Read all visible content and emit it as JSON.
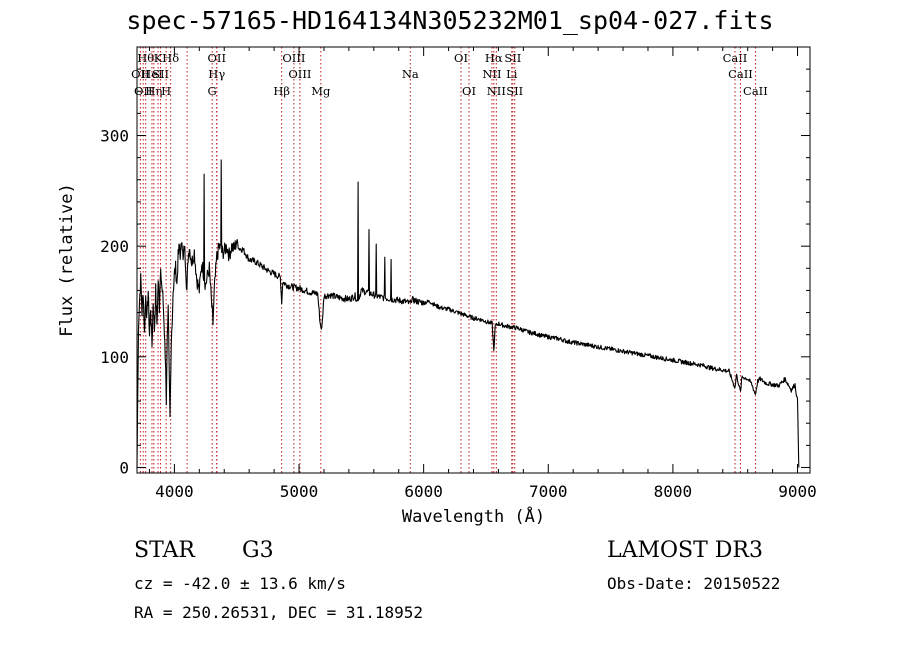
{
  "chart_data": {
    "type": "line",
    "title": "spec-57165-HD164134N305232M01_sp04-027.fits",
    "xlabel": "Wavelength (Å)",
    "ylabel": "Flux (relative)",
    "xlim": [
      3700,
      9100
    ],
    "ylim": [
      -5,
      380
    ],
    "xticks": [
      4000,
      5000,
      6000,
      7000,
      8000,
      9000
    ],
    "xtick_labels": [
      "4000",
      "5000",
      "6000",
      "7000",
      "8000",
      "9000"
    ],
    "yticks": [
      0,
      100,
      200,
      300
    ],
    "ytick_labels": [
      "0",
      "100",
      "200",
      "300"
    ],
    "series": [
      {
        "name": "flux",
        "points": [
          [
            3700,
            0
          ],
          [
            3705,
            55
          ],
          [
            3712,
            130
          ],
          [
            3720,
            150
          ],
          [
            3730,
            170
          ],
          [
            3740,
            140
          ],
          [
            3750,
            160
          ],
          [
            3760,
            120
          ],
          [
            3770,
            155
          ],
          [
            3780,
            135
          ],
          [
            3790,
            160
          ],
          [
            3800,
            120
          ],
          [
            3810,
            145
          ],
          [
            3820,
            110
          ],
          [
            3830,
            150
          ],
          [
            3840,
            125
          ],
          [
            3850,
            160
          ],
          [
            3860,
            130
          ],
          [
            3870,
            170
          ],
          [
            3880,
            145
          ],
          [
            3890,
            185
          ],
          [
            3900,
            160
          ],
          [
            3910,
            150
          ],
          [
            3920,
            120
          ],
          [
            3930,
            90
          ],
          [
            3935,
            60
          ],
          [
            3940,
            100
          ],
          [
            3950,
            150
          ],
          [
            3960,
            70
          ],
          [
            3965,
            40
          ],
          [
            3975,
            110
          ],
          [
            3990,
            160
          ],
          [
            4000,
            175
          ],
          [
            4010,
            180
          ],
          [
            4020,
            165
          ],
          [
            4030,
            190
          ],
          [
            4040,
            200
          ],
          [
            4050,
            190
          ],
          [
            4060,
            210
          ],
          [
            4070,
            185
          ],
          [
            4080,
            200
          ],
          [
            4090,
            185
          ],
          [
            4100,
            160
          ],
          [
            4110,
            190
          ],
          [
            4120,
            200
          ],
          [
            4140,
            185
          ],
          [
            4160,
            195
          ],
          [
            4180,
            170
          ],
          [
            4200,
            160
          ],
          [
            4220,
            185
          ],
          [
            4250,
            165
          ],
          [
            4280,
            180
          ],
          [
            4300,
            145
          ],
          [
            4310,
            130
          ],
          [
            4320,
            160
          ],
          [
            4340,
            190
          ],
          [
            4360,
            200
          ],
          [
            4380,
            195
          ],
          [
            4400,
            195
          ],
          [
            4420,
            200
          ],
          [
            4440,
            192
          ],
          [
            4460,
            200
          ],
          [
            4480,
            197
          ],
          [
            4500,
            205
          ],
          [
            4520,
            198
          ],
          [
            4550,
            197
          ],
          [
            4600,
            188
          ],
          [
            4650,
            186
          ],
          [
            4700,
            182
          ],
          [
            4750,
            178
          ],
          [
            4800,
            175
          ],
          [
            4850,
            172
          ],
          [
            4861,
            150
          ],
          [
            4870,
            168
          ],
          [
            4900,
            165
          ],
          [
            4950,
            163
          ],
          [
            5000,
            162
          ],
          [
            5050,
            160
          ],
          [
            5100,
            158
          ],
          [
            5150,
            157
          ],
          [
            5170,
            130
          ],
          [
            5183,
            125
          ],
          [
            5200,
            155
          ],
          [
            5250,
            156
          ],
          [
            5300,
            154
          ],
          [
            5350,
            153
          ],
          [
            5400,
            152
          ],
          [
            5450,
            155
          ],
          [
            5470,
            150
          ],
          [
            5500,
            160
          ],
          [
            5550,
            158
          ],
          [
            5600,
            156
          ],
          [
            5650,
            154
          ],
          [
            5700,
            153
          ],
          [
            5750,
            152
          ],
          [
            5800,
            151
          ],
          [
            5850,
            150
          ],
          [
            5895,
            148
          ],
          [
            5900,
            152
          ],
          [
            5950,
            150
          ],
          [
            6000,
            149
          ],
          [
            6050,
            150
          ],
          [
            6100,
            146
          ],
          [
            6150,
            144
          ],
          [
            6200,
            143
          ],
          [
            6250,
            141
          ],
          [
            6300,
            139
          ],
          [
            6350,
            137
          ],
          [
            6400,
            135
          ],
          [
            6450,
            134
          ],
          [
            6500,
            132
          ],
          [
            6550,
            130
          ],
          [
            6563,
            105
          ],
          [
            6575,
            128
          ],
          [
            6600,
            130
          ],
          [
            6650,
            128
          ],
          [
            6700,
            127
          ],
          [
            6750,
            126
          ],
          [
            6800,
            124
          ],
          [
            6850,
            122
          ],
          [
            6900,
            121
          ],
          [
            6950,
            119
          ],
          [
            7000,
            118
          ],
          [
            7050,
            117
          ],
          [
            7100,
            116
          ],
          [
            7150,
            114
          ],
          [
            7200,
            113
          ],
          [
            7250,
            112
          ],
          [
            7300,
            111
          ],
          [
            7350,
            110
          ],
          [
            7400,
            109
          ],
          [
            7450,
            108
          ],
          [
            7500,
            107
          ],
          [
            7550,
            106
          ],
          [
            7600,
            105
          ],
          [
            7650,
            104
          ],
          [
            7700,
            103
          ],
          [
            7750,
            102
          ],
          [
            7800,
            101
          ],
          [
            7850,
            100
          ],
          [
            7900,
            99
          ],
          [
            7950,
            98
          ],
          [
            8000,
            97
          ],
          [
            8050,
            96
          ],
          [
            8100,
            95
          ],
          [
            8150,
            94
          ],
          [
            8200,
            93
          ],
          [
            8250,
            92
          ],
          [
            8300,
            90
          ],
          [
            8350,
            89
          ],
          [
            8400,
            88
          ],
          [
            8450,
            87
          ],
          [
            8498,
            72
          ],
          [
            8510,
            84
          ],
          [
            8542,
            68
          ],
          [
            8555,
            82
          ],
          [
            8600,
            80
          ],
          [
            8630,
            76
          ],
          [
            8662,
            66
          ],
          [
            8680,
            78
          ],
          [
            8700,
            80
          ],
          [
            8750,
            76
          ],
          [
            8800,
            75
          ],
          [
            8850,
            74
          ],
          [
            8900,
            80
          ],
          [
            8950,
            70
          ],
          [
            8980,
            75
          ],
          [
            9000,
            60
          ],
          [
            9010,
            0
          ]
        ]
      }
    ],
    "spikes": [
      {
        "x": 4240,
        "y": 265
      },
      {
        "x": 4375,
        "y": 278
      },
      {
        "x": 5475,
        "y": 258
      },
      {
        "x": 5560,
        "y": 215
      },
      {
        "x": 5620,
        "y": 202
      },
      {
        "x": 5690,
        "y": 190
      },
      {
        "x": 5740,
        "y": 188
      }
    ],
    "line_markers": [
      {
        "x": 3727,
        "label": "OII",
        "row": 1
      },
      {
        "x": 3750,
        "label": "OII",
        "row": 2
      },
      {
        "x": 3770,
        "label": "Hθ",
        "row": 0
      },
      {
        "x": 3820,
        "label": "HeI",
        "row": 1
      },
      {
        "x": 3835,
        "label": "Hη",
        "row": 2
      },
      {
        "x": 3869,
        "label": "K",
        "row": 0
      },
      {
        "x": 3889,
        "label": "SII",
        "row": 1
      },
      {
        "x": 3934,
        "label": "H",
        "row": 2
      },
      {
        "x": 3970,
        "label": "Hδ",
        "row": 0
      },
      {
        "x": 4102,
        "label": "",
        "row": 3
      },
      {
        "x": 4303,
        "label": "G",
        "row": 2
      },
      {
        "x": 4340,
        "label": "OII",
        "row": 0
      },
      {
        "x": 4340,
        "label": "Hγ",
        "row": 1
      },
      {
        "x": 4861,
        "label": "Hβ",
        "row": 2
      },
      {
        "x": 4959,
        "label": "OIII",
        "row": 0
      },
      {
        "x": 5007,
        "label": "OIII",
        "row": 1
      },
      {
        "x": 5175,
        "label": "Mg",
        "row": 2
      },
      {
        "x": 5893,
        "label": "Na",
        "row": 1
      },
      {
        "x": 6300,
        "label": "OI",
        "row": 0
      },
      {
        "x": 6364,
        "label": "OI",
        "row": 2
      },
      {
        "x": 6548,
        "label": "NII",
        "row": 1
      },
      {
        "x": 6563,
        "label": "Hα",
        "row": 0
      },
      {
        "x": 6583,
        "label": "NII",
        "row": 2
      },
      {
        "x": 6707,
        "label": "Li",
        "row": 1
      },
      {
        "x": 6716,
        "label": "SII",
        "row": 0
      },
      {
        "x": 6731,
        "label": "SII",
        "row": 2
      },
      {
        "x": 8498,
        "label": "CaII",
        "row": 0
      },
      {
        "x": 8542,
        "label": "CaII",
        "row": 1
      },
      {
        "x": 8662,
        "label": "CaII",
        "row": 2
      }
    ],
    "line_marker_color": "#c01818",
    "trace_color": "#000000"
  },
  "info": {
    "object_class": "STAR",
    "subclass": "G3",
    "survey": "LAMOST DR3",
    "redshift": "cz = -42.0 ± 13.6 km/s",
    "obs_date": "Obs-Date: 20150522",
    "coords": "RA = 250.26531, DEC =  31.18952"
  }
}
